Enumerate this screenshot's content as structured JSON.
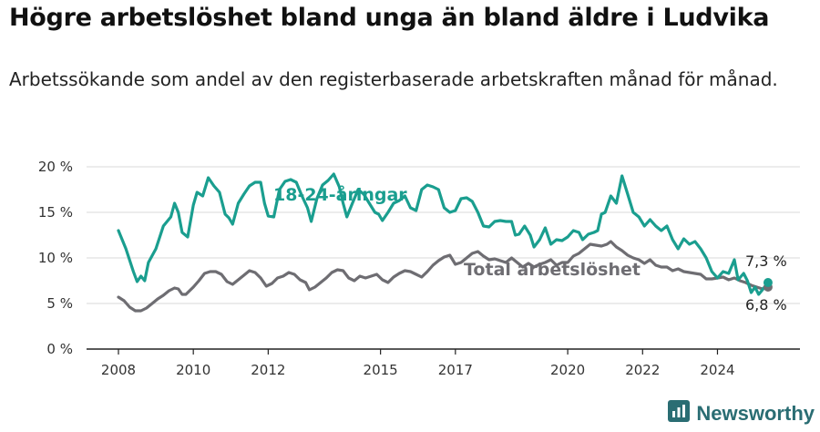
{
  "header": {
    "title": "Högre arbetslöshet bland unga än bland äldre i Ludvika",
    "subtitle": "Arbetssökande som andel av den registerbaserade arbetskraften månad för månad."
  },
  "brand": {
    "name": "Newsworthy",
    "icon": "newsworthy-logo-icon",
    "color": "#2a6d73"
  },
  "chart_data": {
    "type": "line",
    "ylim": [
      0,
      20
    ],
    "yticks": [
      0,
      5,
      10,
      15,
      20
    ],
    "ytick_labels": [
      "0 %",
      "5 %",
      "10 %",
      "15 %",
      "20 %"
    ],
    "xlim": [
      2008.0,
      2025.4
    ],
    "xticks": [
      2008,
      2010,
      2012,
      2015,
      2017,
      2020,
      2022,
      2024
    ],
    "xtick_labels": [
      "2008",
      "2010",
      "2012",
      "2015",
      "2017",
      "2020",
      "2022",
      "2024"
    ],
    "grid": true,
    "legend": "inline labels",
    "series": [
      {
        "name": "18-24-åringar",
        "color": "#1a9e8f",
        "end_label": "7,3 %",
        "points": [
          [
            2008.0,
            13.0
          ],
          [
            2008.2,
            11.0
          ],
          [
            2008.4,
            8.5
          ],
          [
            2008.5,
            7.4
          ],
          [
            2008.6,
            8.0
          ],
          [
            2008.7,
            7.5
          ],
          [
            2008.8,
            9.5
          ],
          [
            2009.0,
            11.0
          ],
          [
            2009.2,
            13.5
          ],
          [
            2009.4,
            14.5
          ],
          [
            2009.5,
            16.0
          ],
          [
            2009.6,
            15.0
          ],
          [
            2009.7,
            12.8
          ],
          [
            2009.85,
            12.3
          ],
          [
            2010.0,
            15.8
          ],
          [
            2010.1,
            17.2
          ],
          [
            2010.25,
            16.8
          ],
          [
            2010.4,
            18.8
          ],
          [
            2010.55,
            17.9
          ],
          [
            2010.7,
            17.2
          ],
          [
            2010.85,
            14.8
          ],
          [
            2010.95,
            14.4
          ],
          [
            2011.05,
            13.7
          ],
          [
            2011.2,
            16.0
          ],
          [
            2011.35,
            17.0
          ],
          [
            2011.5,
            17.9
          ],
          [
            2011.65,
            18.3
          ],
          [
            2011.8,
            18.3
          ],
          [
            2011.9,
            16.0
          ],
          [
            2012.0,
            14.6
          ],
          [
            2012.15,
            14.5
          ],
          [
            2012.3,
            17.5
          ],
          [
            2012.45,
            18.4
          ],
          [
            2012.6,
            18.6
          ],
          [
            2012.75,
            18.3
          ],
          [
            2012.9,
            16.8
          ],
          [
            2013.05,
            15.5
          ],
          [
            2013.15,
            14.0
          ],
          [
            2013.3,
            16.5
          ],
          [
            2013.45,
            18.0
          ],
          [
            2013.6,
            18.5
          ],
          [
            2013.75,
            19.2
          ],
          [
            2013.9,
            17.8
          ],
          [
            2014.0,
            16.0
          ],
          [
            2014.1,
            14.5
          ],
          [
            2014.25,
            16.0
          ],
          [
            2014.4,
            17.5
          ],
          [
            2014.55,
            17.0
          ],
          [
            2014.7,
            16.0
          ],
          [
            2014.85,
            15.0
          ],
          [
            2014.95,
            14.8
          ],
          [
            2015.05,
            14.1
          ],
          [
            2015.2,
            15.0
          ],
          [
            2015.35,
            16.0
          ],
          [
            2015.5,
            16.3
          ],
          [
            2015.65,
            16.8
          ],
          [
            2015.8,
            15.5
          ],
          [
            2015.95,
            15.2
          ],
          [
            2016.1,
            17.5
          ],
          [
            2016.25,
            18.0
          ],
          [
            2016.4,
            17.8
          ],
          [
            2016.55,
            17.5
          ],
          [
            2016.7,
            15.5
          ],
          [
            2016.85,
            15.0
          ],
          [
            2017.0,
            15.2
          ],
          [
            2017.15,
            16.5
          ],
          [
            2017.3,
            16.6
          ],
          [
            2017.45,
            16.2
          ],
          [
            2017.6,
            15.0
          ],
          [
            2017.75,
            13.5
          ],
          [
            2017.9,
            13.4
          ],
          [
            2018.05,
            14.0
          ],
          [
            2018.2,
            14.1
          ],
          [
            2018.35,
            14.0
          ],
          [
            2018.5,
            14.0
          ],
          [
            2018.6,
            12.5
          ],
          [
            2018.7,
            12.6
          ],
          [
            2018.85,
            13.5
          ],
          [
            2019.0,
            12.5
          ],
          [
            2019.1,
            11.2
          ],
          [
            2019.25,
            12.0
          ],
          [
            2019.4,
            13.3
          ],
          [
            2019.55,
            11.5
          ],
          [
            2019.7,
            12.0
          ],
          [
            2019.85,
            11.9
          ],
          [
            2020.0,
            12.3
          ],
          [
            2020.15,
            13.0
          ],
          [
            2020.3,
            12.8
          ],
          [
            2020.4,
            12.0
          ],
          [
            2020.55,
            12.6
          ],
          [
            2020.7,
            12.8
          ],
          [
            2020.8,
            13.0
          ],
          [
            2020.9,
            14.8
          ],
          [
            2021.0,
            15.0
          ],
          [
            2021.15,
            16.8
          ],
          [
            2021.3,
            16.0
          ],
          [
            2021.45,
            19.0
          ],
          [
            2021.6,
            17.0
          ],
          [
            2021.75,
            15.0
          ],
          [
            2021.9,
            14.5
          ],
          [
            2022.05,
            13.5
          ],
          [
            2022.2,
            14.2
          ],
          [
            2022.35,
            13.5
          ],
          [
            2022.5,
            13.0
          ],
          [
            2022.65,
            13.5
          ],
          [
            2022.8,
            12.0
          ],
          [
            2022.95,
            11.0
          ],
          [
            2023.1,
            12.1
          ],
          [
            2023.25,
            11.5
          ],
          [
            2023.4,
            11.8
          ],
          [
            2023.55,
            11.0
          ],
          [
            2023.7,
            10.0
          ],
          [
            2023.85,
            8.5
          ],
          [
            2024.0,
            7.8
          ],
          [
            2024.15,
            8.5
          ],
          [
            2024.3,
            8.3
          ],
          [
            2024.45,
            9.8
          ],
          [
            2024.55,
            7.6
          ],
          [
            2024.7,
            8.3
          ],
          [
            2024.8,
            7.5
          ],
          [
            2024.9,
            6.2
          ],
          [
            2025.0,
            6.8
          ],
          [
            2025.1,
            6.0
          ],
          [
            2025.2,
            6.5
          ],
          [
            2025.35,
            7.3
          ]
        ]
      },
      {
        "name": "Total arbetslöshet",
        "color": "#6e6d72",
        "end_label": "6,8 %",
        "points": [
          [
            2008.0,
            5.7
          ],
          [
            2008.15,
            5.3
          ],
          [
            2008.3,
            4.6
          ],
          [
            2008.45,
            4.2
          ],
          [
            2008.6,
            4.2
          ],
          [
            2008.75,
            4.5
          ],
          [
            2008.9,
            5.0
          ],
          [
            2009.05,
            5.5
          ],
          [
            2009.2,
            5.9
          ],
          [
            2009.35,
            6.4
          ],
          [
            2009.5,
            6.7
          ],
          [
            2009.6,
            6.6
          ],
          [
            2009.7,
            6.0
          ],
          [
            2009.8,
            6.0
          ],
          [
            2010.0,
            6.8
          ],
          [
            2010.15,
            7.5
          ],
          [
            2010.3,
            8.3
          ],
          [
            2010.45,
            8.5
          ],
          [
            2010.6,
            8.5
          ],
          [
            2010.75,
            8.2
          ],
          [
            2010.9,
            7.4
          ],
          [
            2011.05,
            7.1
          ],
          [
            2011.2,
            7.6
          ],
          [
            2011.35,
            8.1
          ],
          [
            2011.5,
            8.6
          ],
          [
            2011.65,
            8.4
          ],
          [
            2011.8,
            7.8
          ],
          [
            2011.95,
            6.9
          ],
          [
            2012.1,
            7.2
          ],
          [
            2012.25,
            7.8
          ],
          [
            2012.4,
            8.0
          ],
          [
            2012.55,
            8.4
          ],
          [
            2012.7,
            8.2
          ],
          [
            2012.85,
            7.6
          ],
          [
            2013.0,
            7.3
          ],
          [
            2013.1,
            6.5
          ],
          [
            2013.25,
            6.8
          ],
          [
            2013.4,
            7.3
          ],
          [
            2013.55,
            7.8
          ],
          [
            2013.7,
            8.4
          ],
          [
            2013.85,
            8.7
          ],
          [
            2014.0,
            8.6
          ],
          [
            2014.15,
            7.8
          ],
          [
            2014.3,
            7.5
          ],
          [
            2014.45,
            8.0
          ],
          [
            2014.6,
            7.8
          ],
          [
            2014.75,
            8.0
          ],
          [
            2014.9,
            8.2
          ],
          [
            2015.05,
            7.6
          ],
          [
            2015.2,
            7.3
          ],
          [
            2015.35,
            7.9
          ],
          [
            2015.5,
            8.3
          ],
          [
            2015.65,
            8.6
          ],
          [
            2015.8,
            8.5
          ],
          [
            2015.95,
            8.2
          ],
          [
            2016.1,
            7.9
          ],
          [
            2016.25,
            8.5
          ],
          [
            2016.4,
            9.2
          ],
          [
            2016.55,
            9.7
          ],
          [
            2016.7,
            10.1
          ],
          [
            2016.85,
            10.3
          ],
          [
            2017.0,
            9.3
          ],
          [
            2017.15,
            9.5
          ],
          [
            2017.3,
            10.0
          ],
          [
            2017.45,
            10.5
          ],
          [
            2017.6,
            10.7
          ],
          [
            2017.75,
            10.2
          ],
          [
            2017.9,
            9.8
          ],
          [
            2018.05,
            9.9
          ],
          [
            2018.2,
            9.7
          ],
          [
            2018.35,
            9.5
          ],
          [
            2018.5,
            10.0
          ],
          [
            2018.65,
            9.5
          ],
          [
            2018.8,
            9.0
          ],
          [
            2018.95,
            9.4
          ],
          [
            2019.1,
            9.0
          ],
          [
            2019.25,
            9.3
          ],
          [
            2019.4,
            9.5
          ],
          [
            2019.55,
            9.8
          ],
          [
            2019.7,
            9.2
          ],
          [
            2019.85,
            9.5
          ],
          [
            2020.0,
            9.5
          ],
          [
            2020.15,
            10.2
          ],
          [
            2020.3,
            10.5
          ],
          [
            2020.45,
            11.0
          ],
          [
            2020.6,
            11.5
          ],
          [
            2020.75,
            11.4
          ],
          [
            2020.9,
            11.3
          ],
          [
            2021.05,
            11.5
          ],
          [
            2021.15,
            11.8
          ],
          [
            2021.3,
            11.2
          ],
          [
            2021.45,
            10.8
          ],
          [
            2021.6,
            10.3
          ],
          [
            2021.75,
            10.0
          ],
          [
            2021.9,
            9.8
          ],
          [
            2022.05,
            9.4
          ],
          [
            2022.2,
            9.8
          ],
          [
            2022.35,
            9.2
          ],
          [
            2022.5,
            9.0
          ],
          [
            2022.65,
            9.0
          ],
          [
            2022.8,
            8.6
          ],
          [
            2022.95,
            8.8
          ],
          [
            2023.1,
            8.5
          ],
          [
            2023.25,
            8.4
          ],
          [
            2023.4,
            8.3
          ],
          [
            2023.55,
            8.2
          ],
          [
            2023.7,
            7.7
          ],
          [
            2023.85,
            7.7
          ],
          [
            2024.0,
            7.8
          ],
          [
            2024.15,
            7.9
          ],
          [
            2024.3,
            7.6
          ],
          [
            2024.45,
            7.8
          ],
          [
            2024.6,
            7.5
          ],
          [
            2024.75,
            7.3
          ],
          [
            2024.9,
            7.0
          ],
          [
            2025.05,
            6.8
          ],
          [
            2025.2,
            6.6
          ],
          [
            2025.35,
            6.8
          ]
        ]
      }
    ]
  }
}
